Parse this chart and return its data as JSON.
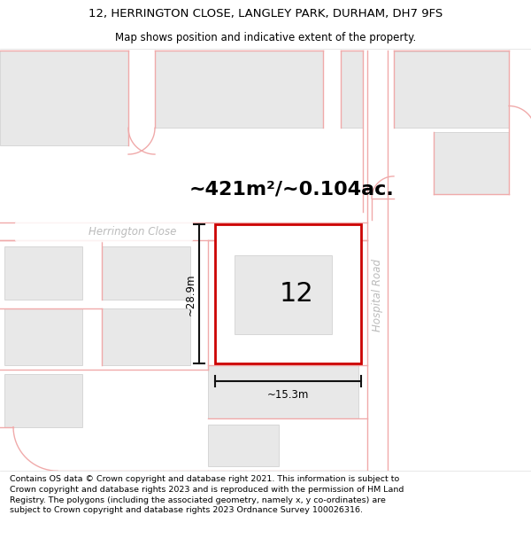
{
  "title_line1": "12, HERRINGTON CLOSE, LANGLEY PARK, DURHAM, DH7 9FS",
  "title_line2": "Map shows position and indicative extent of the property.",
  "footer_text": "Contains OS data © Crown copyright and database right 2021. This information is subject to Crown copyright and database rights 2023 and is reproduced with the permission of HM Land Registry. The polygons (including the associated geometry, namely x, y co-ordinates) are subject to Crown copyright and database rights 2023 Ordnance Survey 100026316.",
  "area_label": "~421m²/~0.104ac.",
  "width_label": "~15.3m",
  "height_label": "~28.9m",
  "number_label": "12",
  "street_label_herrington": "Herrington Close",
  "street_label_hospital": "Hospital Road",
  "map_bg": "#f7f7f7",
  "building_fill": "#e8e8e8",
  "building_stroke": "#cccccc",
  "road_outline": "#f0aaaa",
  "highlight_fill": "#ffffff",
  "highlight_stroke": "#cc0000",
  "dim_color": "#111111",
  "street_color": "#bbbbbb",
  "title_fontsize": 9.5,
  "subtitle_fontsize": 8.5,
  "footer_fontsize": 6.8,
  "area_fontsize": 16,
  "number_fontsize": 22,
  "street_fontsize": 8.5,
  "dim_fontsize": 8.5
}
